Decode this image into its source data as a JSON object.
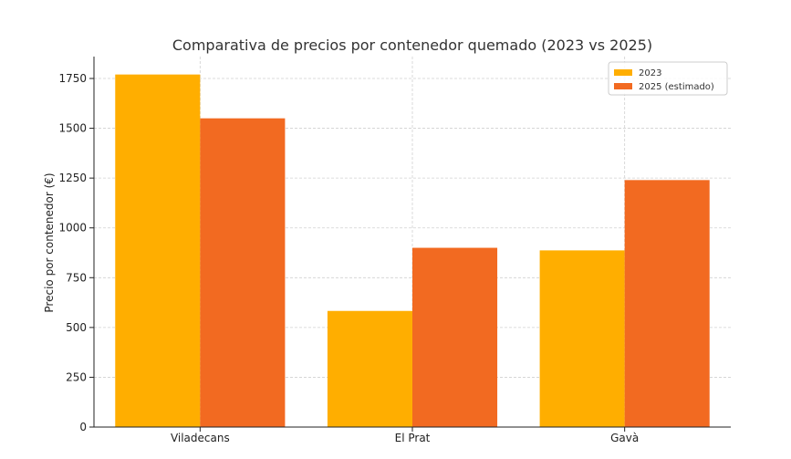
{
  "chart_data": {
    "type": "bar",
    "title": "Comparativa de precios por contenedor quemado (2023 vs 2025)",
    "xlabel": "",
    "ylabel": "Precio por contenedor (€)",
    "categories": [
      "Viladecans",
      "El Prat",
      "Gavà"
    ],
    "series": [
      {
        "name": "2023",
        "values": [
          1770,
          583,
          887
        ],
        "color": "#FFAE00"
      },
      {
        "name": "2025 (estimado)",
        "values": [
          1550,
          900,
          1240
        ],
        "color": "#F26A21"
      }
    ],
    "ylim": [
      0,
      1860
    ],
    "yticks": [
      0,
      250,
      500,
      750,
      1000,
      1250,
      1500,
      1750
    ],
    "ytick_labels": [
      "0",
      "250",
      "500",
      "750",
      "1000",
      "1250",
      "1500",
      "1750"
    ],
    "grid": true,
    "legend_position": "top-right"
  }
}
